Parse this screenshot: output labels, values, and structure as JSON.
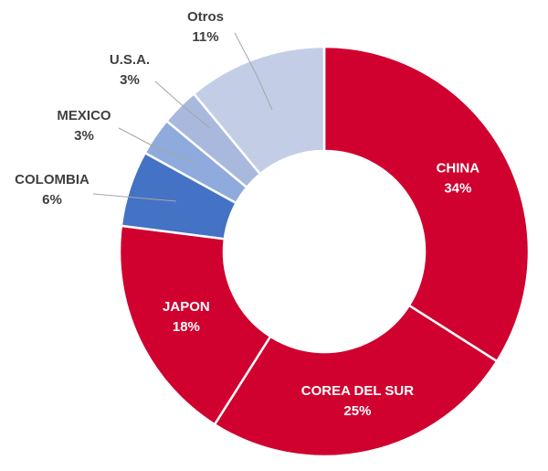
{
  "chart_data": {
    "type": "pie",
    "subtype": "donut",
    "title": "",
    "legend": "none",
    "unit": "%",
    "categories": [
      "CHINA",
      "COREA DEL SUR",
      "JAPON",
      "COLOMBIA",
      "MEXICO",
      "U.S.A.",
      "Otros"
    ],
    "values": [
      34,
      25,
      18,
      6,
      3,
      3,
      11
    ],
    "value_labels": [
      "34%",
      "25%",
      "18%",
      "6%",
      "3%",
      "3%",
      "11%"
    ],
    "colors": [
      "#d0002f",
      "#d0002f",
      "#d0002f",
      "#4472c4",
      "#8faadc",
      "#a9b8dd",
      "#c3cee6"
    ],
    "label_colors": [
      "#ffffff",
      "#ffffff",
      "#ffffff",
      "#404040",
      "#404040",
      "#404040",
      "#404040"
    ],
    "start_angle_deg": 0,
    "direction": "clockwise"
  }
}
